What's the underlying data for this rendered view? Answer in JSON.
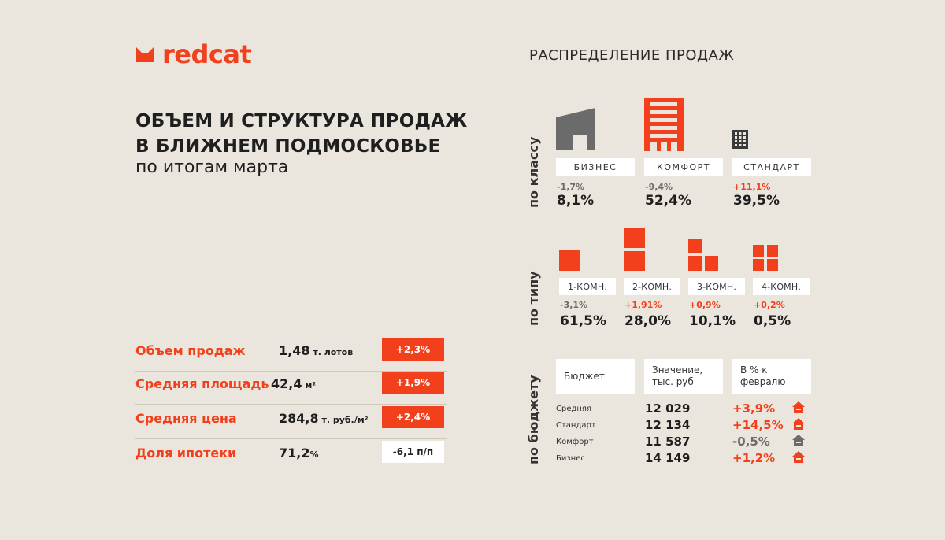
{
  "brand": {
    "name": "redcat",
    "accent": "#f2401c"
  },
  "title": {
    "line1": "ОБЪЕМ И СТРУКТУРА ПРОДАЖ",
    "line2": "В БЛИЖНЕМ ПОДМОСКОВЬЕ",
    "subtitle": "по итогам марта"
  },
  "kpis": [
    {
      "label": "Объем продаж",
      "value": "1,48",
      "unit": " т. лотов",
      "badge": "+2,3%"
    },
    {
      "label": "Средняя площадь",
      "value": "42,4",
      "unit": " м²",
      "badge": "+1,9%"
    },
    {
      "label": "Средняя цена",
      "value": "284,8",
      "unit": " т. руб./м²",
      "badge": "+2,4%"
    },
    {
      "label": "Доля ипотеки",
      "value": "71,2",
      "unit": "%",
      "badge": "-6,1 п/п"
    }
  ],
  "distribution": {
    "title": "РАСПРЕДЕЛЕНИЕ ПРОДАЖ",
    "by_class": {
      "label": "по классу",
      "items": [
        {
          "name": "БИЗНЕС",
          "delta": "-1,7%",
          "share": "8,1%",
          "icon": "business-building-icon"
        },
        {
          "name": "КОМФОРТ",
          "delta": "-9,4%",
          "share": "52,4%",
          "icon": "comfort-building-icon"
        },
        {
          "name": "СТАНДАРТ",
          "delta": "+11,1%",
          "share": "39,5%",
          "icon": "standard-building-icon"
        }
      ]
    },
    "by_type": {
      "label": "по типу",
      "items": [
        {
          "name": "1-КОМН.",
          "delta": "-3,1%",
          "share": "61,5%"
        },
        {
          "name": "2-КОМН.",
          "delta": "+1,91%",
          "share": "28,0%"
        },
        {
          "name": "3-КОМН.",
          "delta": "+0,9%",
          "share": "10,1%"
        },
        {
          "name": "4-КОМН.",
          "delta": "+0,2%",
          "share": "0,5%"
        }
      ]
    },
    "by_budget": {
      "label": "по бюджету",
      "headers": [
        "Бюджет",
        "Значение, тыс. руб",
        "В % к февралю"
      ],
      "rows": [
        {
          "name": "Средняя",
          "value": "12 029",
          "pct": "+3,9%"
        },
        {
          "name": "Стандарт",
          "value": "12 134",
          "pct": "+14,5%"
        },
        {
          "name": "Комфорт",
          "value": "11 587",
          "pct": "-0,5%"
        },
        {
          "name": "Бизнес",
          "value": "14 149",
          "pct": "+1,2%"
        }
      ]
    }
  }
}
